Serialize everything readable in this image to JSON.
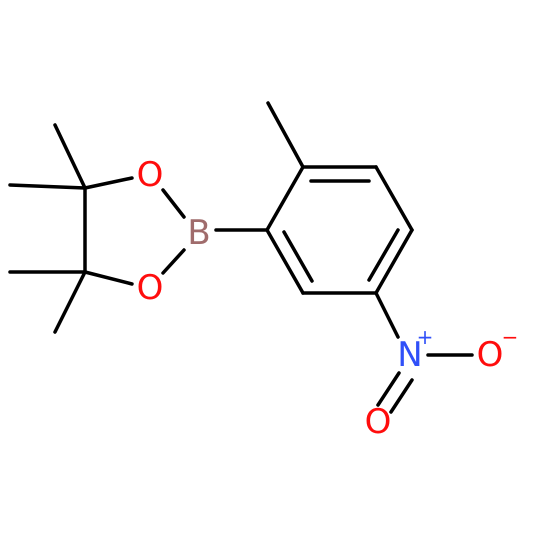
{
  "atoms": [
    {
      "label": "O"
    },
    {
      "label": "O"
    },
    {
      "label": "B"
    },
    {
      "label": "N",
      "charge": "+"
    },
    {
      "label": "O",
      "charge": "−"
    },
    {
      "label": "O"
    }
  ]
}
